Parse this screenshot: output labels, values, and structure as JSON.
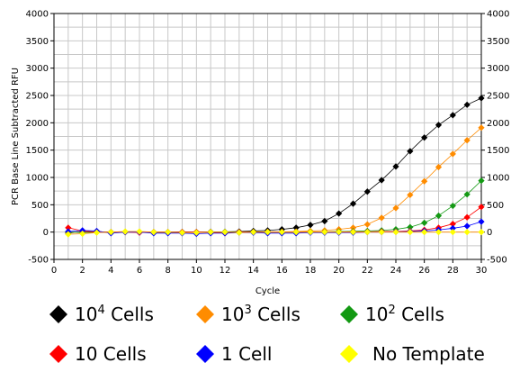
{
  "chart_data": {
    "type": "line",
    "xlabel": "Cycle",
    "ylabel": "PCR Base Line Subtracted RFU",
    "xlim": [
      0,
      30
    ],
    "ylim": [
      -500,
      4000
    ],
    "x_ticks": [
      0,
      2,
      4,
      6,
      8,
      10,
      12,
      14,
      16,
      18,
      20,
      22,
      24,
      26,
      28,
      30
    ],
    "y_ticks": [
      -500,
      0,
      500,
      1000,
      1500,
      2000,
      2500,
      3000,
      3500,
      4000
    ],
    "grid": true,
    "legend_position": "bottom",
    "x": [
      1,
      2,
      3,
      4,
      5,
      6,
      7,
      8,
      9,
      10,
      11,
      12,
      13,
      14,
      15,
      16,
      17,
      18,
      19,
      20,
      21,
      22,
      23,
      24,
      25,
      26,
      27,
      28,
      29,
      30
    ],
    "series": [
      {
        "name_parts": [
          "10",
          "4",
          " Cells"
        ],
        "color": "#000000",
        "values": [
          -20,
          10,
          5,
          0,
          5,
          0,
          0,
          0,
          0,
          0,
          5,
          5,
          10,
          20,
          30,
          50,
          80,
          130,
          200,
          340,
          520,
          740,
          950,
          1200,
          1480,
          1730,
          1960,
          2140,
          2330,
          2450
        ]
      },
      {
        "name_parts": [
          "10",
          "3",
          " Cells"
        ],
        "color": "#FF8C00",
        "values": [
          -10,
          0,
          0,
          0,
          5,
          5,
          0,
          0,
          0,
          0,
          0,
          0,
          0,
          0,
          5,
          5,
          10,
          20,
          30,
          50,
          80,
          140,
          260,
          440,
          680,
          930,
          1190,
          1430,
          1680,
          1910
        ]
      },
      {
        "name_parts": [
          "10",
          "2",
          " Cells"
        ],
        "color": "#139913",
        "values": [
          0,
          -10,
          0,
          0,
          0,
          0,
          0,
          0,
          0,
          0,
          0,
          0,
          0,
          0,
          0,
          0,
          0,
          5,
          5,
          10,
          15,
          20,
          30,
          50,
          90,
          170,
          300,
          480,
          690,
          940
        ]
      },
      {
        "name_parts": [
          "10 Cells"
        ],
        "color": "#FF0000",
        "values": [
          80,
          20,
          0,
          0,
          0,
          -10,
          0,
          0,
          0,
          0,
          0,
          -20,
          0,
          0,
          0,
          0,
          0,
          0,
          0,
          0,
          5,
          5,
          10,
          10,
          20,
          40,
          80,
          150,
          270,
          460
        ]
      },
      {
        "name_parts": [
          "1 Cell"
        ],
        "color": "#0000FF",
        "values": [
          10,
          30,
          20,
          -20,
          0,
          0,
          -20,
          -20,
          -20,
          -30,
          -20,
          -20,
          -10,
          -10,
          -20,
          -20,
          -20,
          -10,
          -10,
          -10,
          -10,
          0,
          0,
          5,
          10,
          20,
          40,
          70,
          110,
          190
        ]
      },
      {
        "name_parts": [
          "No Template"
        ],
        "color": "#FFFF00",
        "values": [
          -40,
          -30,
          -10,
          0,
          10,
          10,
          0,
          0,
          -10,
          -10,
          0,
          0,
          -10,
          0,
          0,
          0,
          0,
          0,
          0,
          0,
          0,
          0,
          0,
          0,
          0,
          0,
          0,
          0,
          0,
          0
        ]
      }
    ]
  }
}
